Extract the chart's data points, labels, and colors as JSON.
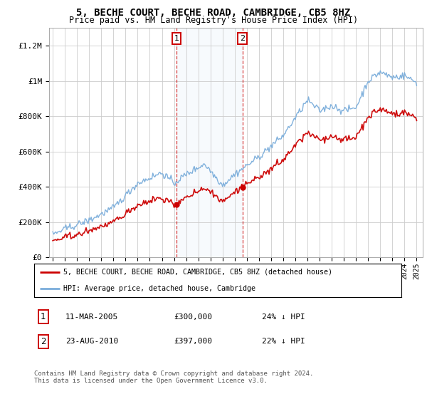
{
  "title": "5, BECHE COURT, BECHE ROAD, CAMBRIDGE, CB5 8HZ",
  "subtitle": "Price paid vs. HM Land Registry's House Price Index (HPI)",
  "sale1_date": "11-MAR-2005",
  "sale1_price": 300000,
  "sale1_label": "24% ↓ HPI",
  "sale1_x": 2005.21,
  "sale2_date": "23-AUG-2010",
  "sale2_price": 397000,
  "sale2_label": "22% ↓ HPI",
  "sale2_x": 2010.64,
  "hpi_color": "#7aaddb",
  "price_color": "#cc0000",
  "legend1": "5, BECHE COURT, BECHE ROAD, CAMBRIDGE, CB5 8HZ (detached house)",
  "legend2": "HPI: Average price, detached house, Cambridge",
  "footnote": "Contains HM Land Registry data © Crown copyright and database right 2024.\nThis data is licensed under the Open Government Licence v3.0.",
  "ylim_max": 1300000,
  "ytick_max": 1200000,
  "ytick_step": 200000,
  "xlim_start": 1994.7,
  "xlim_end": 2025.5,
  "seed": 42
}
